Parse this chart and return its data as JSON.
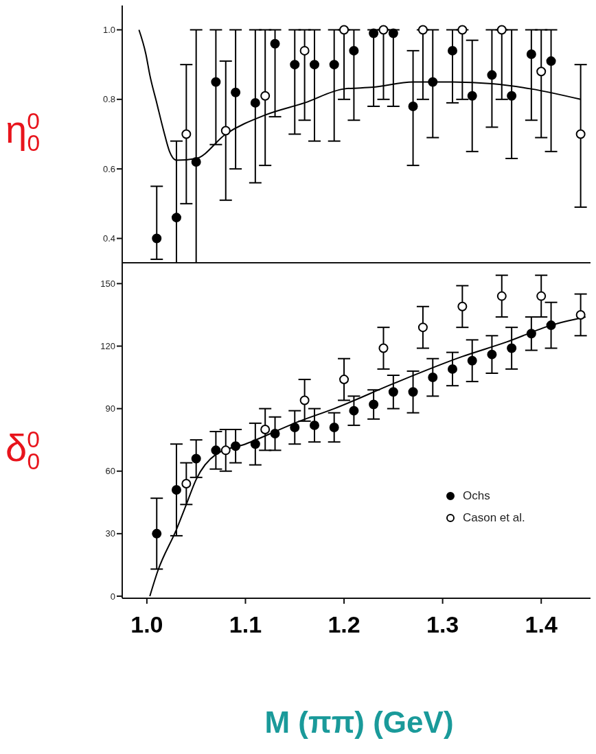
{
  "chart_data": [
    {
      "type": "scatter",
      "ylabel": "η$^{0}$$_{0}$",
      "xlim": [
        0.975,
        1.45
      ],
      "xticks": [
        1,
        1.1,
        1.2,
        1.3,
        1.4
      ],
      "ylim": [
        0.33,
        1.07
      ],
      "yticks": [
        0.4,
        0.6,
        0.8,
        {
          "value": 1,
          "label": "1.0"
        }
      ],
      "tick_labels": "y",
      "marker": "circle",
      "legend": false,
      "series": [
        {
          "color": "#000000",
          "x": [
            1.01,
            1.03,
            1.05,
            1.07,
            1.09,
            1.11,
            1.13,
            1.15,
            1.17,
            1.19,
            1.21,
            1.23,
            1.25,
            1.27,
            1.29,
            1.31,
            1.33,
            1.35,
            1.37,
            1.39,
            1.41
          ],
          "values": [
            0.4,
            0.46,
            0.62,
            0.85,
            0.82,
            0.79,
            0.96,
            0.9,
            0.9,
            0.9,
            0.94,
            0.99,
            0.99,
            0.78,
            0.85,
            0.94,
            0.81,
            0.87,
            0.81,
            0.93,
            0.91
          ],
          "errors": [
            [
              0.34,
              0.55
            ],
            [
              0.33,
              0.68
            ],
            [
              0.33,
              1.0
            ],
            [
              0.67,
              1.0
            ],
            [
              0.6,
              1.0
            ],
            [
              0.56,
              1.0
            ],
            [
              0.75,
              1.0
            ],
            [
              0.7,
              1.0
            ],
            [
              0.68,
              1.0
            ],
            [
              0.68,
              1.0
            ],
            [
              0.74,
              1.0
            ],
            [
              0.78,
              1.0
            ],
            [
              0.78,
              1.0
            ],
            [
              0.61,
              0.94
            ],
            [
              0.69,
              1.0
            ],
            [
              0.79,
              1.0
            ],
            [
              0.65,
              0.97
            ],
            [
              0.72,
              1.0
            ],
            [
              0.63,
              1.0
            ],
            [
              0.74,
              1.0
            ],
            [
              0.65,
              1.0
            ]
          ]
        },
        {
          "color": "#000000",
          "x": [
            1.04,
            1.08,
            1.12,
            1.16,
            1.2,
            1.24,
            1.28,
            1.32,
            1.36,
            1.4,
            1.44
          ],
          "values": [
            0.7,
            0.71,
            0.81,
            0.94,
            1.0,
            1.0,
            1.0,
            1.0,
            1.0,
            0.88,
            0.7
          ],
          "errors": [
            [
              0.5,
              0.9
            ],
            [
              0.51,
              0.91
            ],
            [
              0.61,
              1.0
            ],
            [
              0.74,
              1.0
            ],
            [
              0.8,
              1.0
            ],
            [
              0.8,
              1.0
            ],
            [
              0.8,
              1.0
            ],
            [
              0.8,
              1.0
            ],
            [
              0.8,
              1.0
            ],
            [
              0.69,
              1.0
            ],
            [
              0.49,
              0.9
            ]
          ]
        },
        {
          "type": "line",
          "marker": "none",
          "color": "#000000",
          "x": [
            0.992,
            0.999,
            1.003,
            1.01,
            1.017,
            1.023,
            1.03,
            1.05,
            1.08,
            1.12,
            1.16,
            1.2,
            1.23,
            1.27,
            1.31,
            1.35,
            1.39,
            1.44
          ],
          "values": [
            1.0,
            0.93,
            0.87,
            0.79,
            0.71,
            0.65,
            0.625,
            0.63,
            0.7,
            0.755,
            0.79,
            0.83,
            0.835,
            0.85,
            0.85,
            0.845,
            0.83,
            0.8
          ]
        }
      ]
    },
    {
      "type": "scatter",
      "ylabel": "δ$^{0}$$_{0}$",
      "xlabel": "M (ππ)  (GeV)",
      "xlim": [
        0.975,
        1.45
      ],
      "xticks": [
        {
          "value": 1,
          "label": "1.0"
        },
        1.1,
        1.2,
        1.3,
        1.4
      ],
      "ylim": [
        -1,
        160
      ],
      "yticks": [
        0,
        30,
        60,
        90,
        120,
        150
      ],
      "marker": "circle",
      "legend": "right",
      "series": [
        {
          "name": "Ochs",
          "color": "#000000",
          "x": [
            1.01,
            1.03,
            1.05,
            1.07,
            1.09,
            1.11,
            1.13,
            1.15,
            1.17,
            1.19,
            1.21,
            1.23,
            1.25,
            1.27,
            1.29,
            1.31,
            1.33,
            1.35,
            1.37,
            1.39,
            1.41
          ],
          "values": [
            30,
            51,
            66,
            70,
            72,
            73,
            78,
            81,
            82,
            81,
            89,
            92,
            98,
            98,
            105,
            109,
            113,
            116,
            119,
            126,
            130
          ],
          "errors": [
            17,
            22,
            9,
            9,
            8,
            10,
            8,
            8,
            8,
            7,
            7,
            7,
            8,
            10,
            9,
            8,
            10,
            9,
            10,
            8,
            11
          ]
        },
        {
          "name": "Cason et al.",
          "color": "#000000",
          "x": [
            1.04,
            1.08,
            1.12,
            1.16,
            1.2,
            1.24,
            1.28,
            1.32,
            1.36,
            1.4,
            1.44
          ],
          "values": [
            54,
            70,
            80,
            94,
            104,
            119,
            129,
            139,
            144,
            144,
            135
          ],
          "errors": [
            10,
            10,
            10,
            10,
            10,
            10,
            10,
            10,
            10,
            10,
            10
          ]
        },
        {
          "type": "line",
          "marker": "none",
          "color": "#000000",
          "x": [
            1.003,
            1.011,
            1.03,
            1.04,
            1.05,
            1.07,
            1.1,
            1.155,
            1.19,
            1.25,
            1.32,
            1.365,
            1.41,
            1.445
          ],
          "values": [
            0,
            12,
            32,
            44,
            56,
            68,
            73,
            84,
            90,
            102,
            115,
            122,
            130,
            134
          ]
        }
      ]
    }
  ]
}
